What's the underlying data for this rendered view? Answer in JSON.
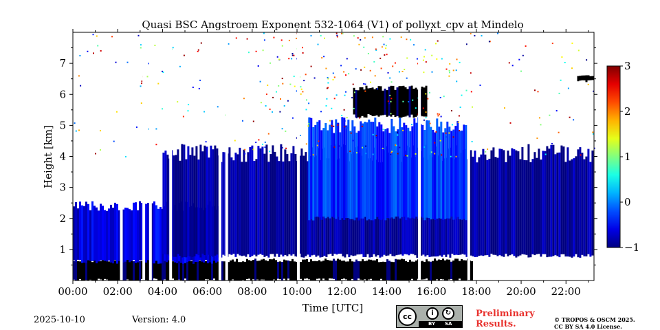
{
  "chart_data": {
    "type": "heatmap",
    "title": "Quasi BSC Angstroem Exponent 532-1064 (V1) of pollyxt_cpv at Mindelo",
    "xlabel": "Time [UTC]",
    "ylabel": "Height [km]",
    "xlim": [
      0,
      23.25
    ],
    "ylim": [
      0,
      8
    ],
    "x_ticks": [
      0,
      2,
      4,
      6,
      8,
      10,
      12,
      14,
      16,
      18,
      20,
      22
    ],
    "x_tick_labels": [
      "00:00",
      "02:00",
      "04:00",
      "06:00",
      "08:00",
      "10:00",
      "12:00",
      "14:00",
      "16:00",
      "18:00",
      "20:00",
      "22:00"
    ],
    "y_ticks": [
      1,
      2,
      3,
      4,
      5,
      6,
      7
    ],
    "y_tick_labels": [
      "1",
      "2",
      "3",
      "4",
      "5",
      "6",
      "7"
    ],
    "colorbar": {
      "min": -1,
      "max": 3,
      "ticks": [
        3,
        2,
        1,
        0,
        -1
      ],
      "tick_labels": [
        "3",
        "2",
        "1",
        "0",
        "−1"
      ],
      "colormap": "jet"
    },
    "layers": [
      {
        "name": "surface-black-band",
        "t_start": 0.0,
        "t_end": 17.8,
        "h_bottom": 0.0,
        "h_top": 0.65,
        "value": -1.0
      },
      {
        "name": "boundary-layer-blue",
        "t_start": 0.0,
        "t_end": 6.6,
        "h_bottom": 0.6,
        "h_top": 2.4,
        "value": -0.6
      },
      {
        "name": "dust-layer-core",
        "t_start": 4.0,
        "t_end": 23.2,
        "h_bottom": 0.8,
        "h_top": 4.1,
        "value": -0.9
      },
      {
        "name": "upper-mixed-layer",
        "t_start": 10.5,
        "t_end": 17.5,
        "h_bottom": 2.0,
        "h_top": 5.0,
        "value": -0.3
      },
      {
        "name": "cloud-layer-6km",
        "t_start": 12.5,
        "t_end": 15.8,
        "h_bottom": 5.3,
        "h_top": 6.2,
        "value": -1.0
      },
      {
        "name": "cloud-layer-6.5km",
        "t_start": 22.5,
        "t_end": 23.2,
        "h_bottom": 6.4,
        "h_top": 6.6,
        "value": -1.0
      }
    ],
    "data_gaps_hours": [
      2.1,
      3.1,
      3.4,
      4.3,
      6.5,
      6.8,
      10.0,
      15.4,
      17.6
    ]
  },
  "footer": {
    "date": "2025-10-10",
    "version": "Version: 4.0",
    "preliminary_line1": "Preliminary",
    "preliminary_line2": "Results.",
    "copyright_line1": "© TROPOS & OSCM 2025.",
    "copyright_line2": "CC BY SA 4.0 License.",
    "license_logo": {
      "cc": "cc",
      "by": "BY",
      "sa": "SA"
    }
  }
}
